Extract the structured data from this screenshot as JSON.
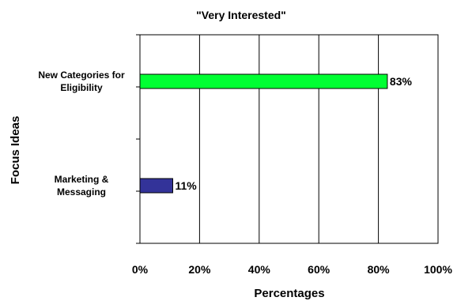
{
  "chart_data": {
    "type": "bar",
    "orientation": "horizontal",
    "title": "\"Very Interested\"",
    "xlabel": "Percentages",
    "ylabel": "Focus Ideas",
    "xlim": [
      0,
      100
    ],
    "xticks": [
      "0%",
      "20%",
      "40%",
      "60%",
      "80%",
      "100%"
    ],
    "grid": true,
    "legend": "none",
    "categories": [
      {
        "lines": [
          "New Categories for",
          "Eligibility"
        ]
      },
      {
        "lines": [
          "Marketing &",
          "Messaging"
        ]
      }
    ],
    "values": [
      83,
      11
    ],
    "value_labels": [
      "83%",
      "11%"
    ],
    "colors": [
      "#00ff33",
      "#333399"
    ]
  }
}
